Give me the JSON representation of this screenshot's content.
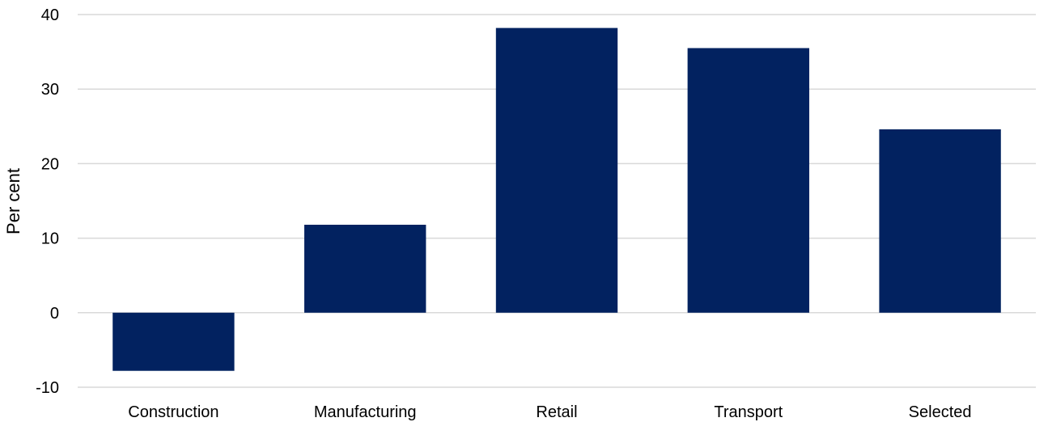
{
  "chart_data": {
    "type": "bar",
    "categories": [
      "Construction",
      "Manufacturing",
      "Retail",
      "Transport",
      "Selected"
    ],
    "values": [
      -7.8,
      11.8,
      38.2,
      35.5,
      24.6
    ],
    "title": "",
    "xlabel": "",
    "ylabel": "Per cent",
    "ylim": [
      -10,
      40
    ],
    "yticks": [
      -10,
      0,
      10,
      20,
      30,
      40
    ],
    "grid": true,
    "legend": "none",
    "bar_color": "#022260",
    "gridline_color": "#d9d9d9"
  }
}
